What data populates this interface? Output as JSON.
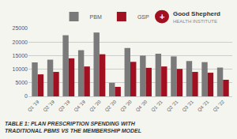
{
  "chart_data": {
    "type": "bar",
    "title": "TABLE 1: PLAN PRESCRIPTION SPENDING WITH TRADITIONAL PBMS VS THE MEMBERSHIP MODEL",
    "categories": [
      "Q1 '19",
      "Q2 '19",
      "Q3 '19",
      "Q4 '19",
      "Q1 '20",
      "Q2 '20",
      "Q3 '20",
      "Q4 '20",
      "Q1 '21",
      "Q2 '21",
      "Q3 '21",
      "Q4 '21",
      "Q1 '22"
    ],
    "series": [
      {
        "name": "PBM",
        "color": "#7a7a7a",
        "values": [
          12500,
          13500,
          22500,
          17000,
          23500,
          5000,
          17800,
          15000,
          15700,
          14700,
          13000,
          12600,
          10600
        ]
      },
      {
        "name": "GSP",
        "color": "#a01020",
        "values": [
          8100,
          9000,
          14000,
          11000,
          15500,
          3500,
          12700,
          10500,
          11000,
          10100,
          9000,
          8700,
          6100
        ]
      }
    ],
    "ylim": [
      0,
      25000
    ],
    "yticks": [
      0,
      5000,
      10000,
      15000,
      20000,
      25000
    ],
    "grid": true,
    "legend": "top",
    "annotations": [
      "Good Shepherd",
      "HEALTH INSTITUTE",
      "+"
    ]
  }
}
